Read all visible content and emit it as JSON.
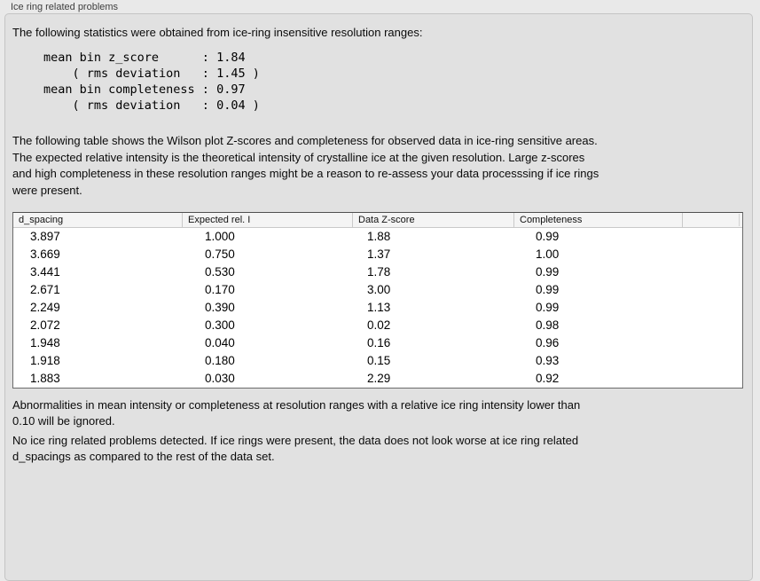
{
  "panel": {
    "title": "Ice ring related problems"
  },
  "intro": "The following statistics were obtained from ice-ring insensitive resolution ranges:",
  "stats_block": "mean bin z_score      : 1.84\n    ( rms deviation   : 1.45 )\nmean bin completeness : 0.97\n    ( rms deviation   : 0.04 )",
  "table_intro": "The following table shows the Wilson plot Z-scores and completeness for observed data in ice-ring sensitive areas.\nThe expected relative intensity is the theoretical intensity of crystalline ice at the given resolution. Large z-scores\nand high completeness in these resolution ranges might be a reason to re-assess your data processsing if ice rings\nwere present.",
  "table": {
    "columns": [
      "d_spacing",
      "Expected rel. I",
      "Data Z-score",
      "Completeness",
      ""
    ],
    "rows": [
      [
        "3.897",
        "1.000",
        "1.88",
        "0.99"
      ],
      [
        "3.669",
        "0.750",
        "1.37",
        "1.00"
      ],
      [
        "3.441",
        "0.530",
        "1.78",
        "0.99"
      ],
      [
        "2.671",
        "0.170",
        "3.00",
        "0.99"
      ],
      [
        "2.249",
        "0.390",
        "1.13",
        "0.99"
      ],
      [
        "2.072",
        "0.300",
        "0.02",
        "0.98"
      ],
      [
        "1.948",
        "0.040",
        "0.16",
        "0.96"
      ],
      [
        "1.918",
        "0.180",
        "0.15",
        "0.93"
      ],
      [
        "1.883",
        "0.030",
        "2.29",
        "0.92"
      ]
    ]
  },
  "ignore_note": "Abnormalities in mean intensity or completeness at resolution ranges with a relative ice ring intensity lower than\n0.10 will be ignored.",
  "conclusion": "No ice ring related problems detected. If ice rings were present, the data does not look worse at ice ring related\nd_spacings as compared to the rest of the data set."
}
